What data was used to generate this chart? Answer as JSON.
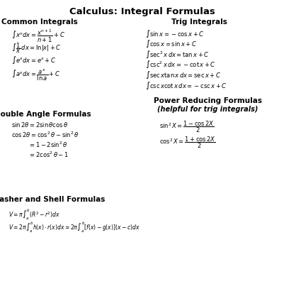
{
  "title": "Calculus: Integral Formulas",
  "bg_color": "#ffffff",
  "text_color": "#000000",
  "title_fontsize": 9.5,
  "header_fontsize": 7.5,
  "formula_fontsize": 6.0,
  "formula_fontsize_small": 5.5,
  "common_integrals_header": "Common Integrals",
  "trig_integrals_header": "Trig Integrals",
  "double_angle_header": "Double Angle Formulas",
  "power_reducing_header1": "Power Reducing Formulas",
  "power_reducing_header2": "(helpful for trig integrals)",
  "washer_shell_header": "Washer and Shell Formulas",
  "common_formulas": [
    "$\\int x^n dx = \\dfrac{x^{n+1}}{n+1} + C$",
    "$\\int \\dfrac{1}{x}\\, dx = \\ln|x| + C$",
    "$\\int e^x dx = e^x + C$",
    "$\\int a^x dx = \\dfrac{a^x}{\\ln a} + C$"
  ],
  "trig_formulas": [
    "$\\int \\sin x = -\\cos x + C$",
    "$\\int \\cos x = \\sin x + C$",
    "$\\int \\sec^2 x\\, dx = \\tan x + C$",
    "$\\int \\csc^2 x\\, dx = -\\cot x + C$",
    "$\\int \\sec x \\tan x\\, dx = \\sec x + C$",
    "$\\int \\csc x \\cot x\\, dx = -\\csc x + C$"
  ],
  "double_angle_formulas": [
    "$\\sin 2\\theta = 2\\sin\\theta\\cos\\theta$",
    "$\\cos 2\\theta = \\cos^2\\theta - \\sin^2\\theta$",
    "$= 1 - 2\\sin^2\\theta$",
    "$= 2\\cos^2\\theta - 1$"
  ],
  "power_formulas": [
    "$\\sin^2 X = \\dfrac{1 - \\cos 2X}{2}$",
    "$\\cos^2 X = \\dfrac{1 + \\cos 2X}{2}$"
  ],
  "washer_formulas": [
    "$V = \\pi \\int_a^b (R^2 - r^2)dx$",
    "$V = 2\\pi \\int_a^b h(x) \\cdot r(x)dx = 2\\pi \\int_a^b [f(x) - g(x)](x - c)dx$"
  ]
}
